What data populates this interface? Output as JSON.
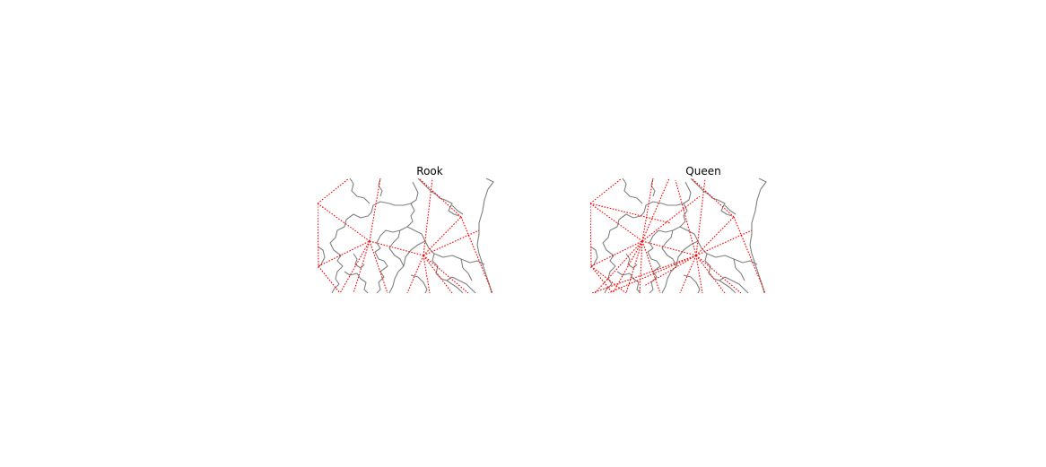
{
  "figure": {
    "panels": [
      {
        "id": "rook",
        "title": "Rook",
        "links": [
          [
            0,
            28,
            35,
            0
          ],
          [
            0,
            28,
            58,
            70
          ],
          [
            0,
            28,
            1,
            98
          ],
          [
            1,
            98,
            58,
            70
          ],
          [
            1,
            98,
            25,
            128
          ],
          [
            58,
            70,
            70,
            0
          ],
          [
            58,
            70,
            118,
            86
          ],
          [
            58,
            70,
            25,
            128
          ],
          [
            58,
            70,
            40,
            128
          ],
          [
            58,
            70,
            78,
            128
          ],
          [
            118,
            86,
            128,
            0
          ],
          [
            118,
            86,
            160,
            43
          ],
          [
            118,
            86,
            180,
            58
          ],
          [
            118,
            86,
            100,
            128
          ],
          [
            118,
            86,
            125,
            128
          ],
          [
            118,
            86,
            150,
            128
          ],
          [
            118,
            86,
            168,
            128
          ],
          [
            160,
            43,
            113,
            0
          ],
          [
            160,
            43,
            195,
            128
          ]
        ]
      },
      {
        "id": "queen",
        "title": "Queen",
        "links": [
          [
            0,
            28,
            35,
            0
          ],
          [
            0,
            28,
            58,
            70
          ],
          [
            0,
            28,
            1,
            98
          ],
          [
            1,
            98,
            58,
            70
          ],
          [
            1,
            98,
            25,
            128
          ],
          [
            58,
            70,
            70,
            0
          ],
          [
            58,
            70,
            118,
            86
          ],
          [
            58,
            70,
            25,
            128
          ],
          [
            58,
            70,
            40,
            128
          ],
          [
            58,
            70,
            78,
            128
          ],
          [
            118,
            86,
            128,
            0
          ],
          [
            118,
            86,
            160,
            43
          ],
          [
            118,
            86,
            180,
            58
          ],
          [
            118,
            86,
            100,
            128
          ],
          [
            118,
            86,
            125,
            128
          ],
          [
            118,
            86,
            150,
            128
          ],
          [
            118,
            86,
            168,
            128
          ],
          [
            160,
            43,
            113,
            0
          ],
          [
            160,
            43,
            195,
            128
          ],
          [
            58,
            70,
            88,
            0
          ],
          [
            58,
            70,
            122,
            20
          ],
          [
            58,
            70,
            5,
            128
          ],
          [
            58,
            70,
            55,
            128
          ],
          [
            118,
            86,
            95,
            2
          ],
          [
            118,
            86,
            20,
            128
          ],
          [
            118,
            86,
            60,
            120
          ],
          [
            118,
            86,
            2,
            128
          ],
          [
            1,
            98,
            40,
            128
          ],
          [
            0,
            28,
            90,
            50
          ]
        ]
      }
    ]
  }
}
